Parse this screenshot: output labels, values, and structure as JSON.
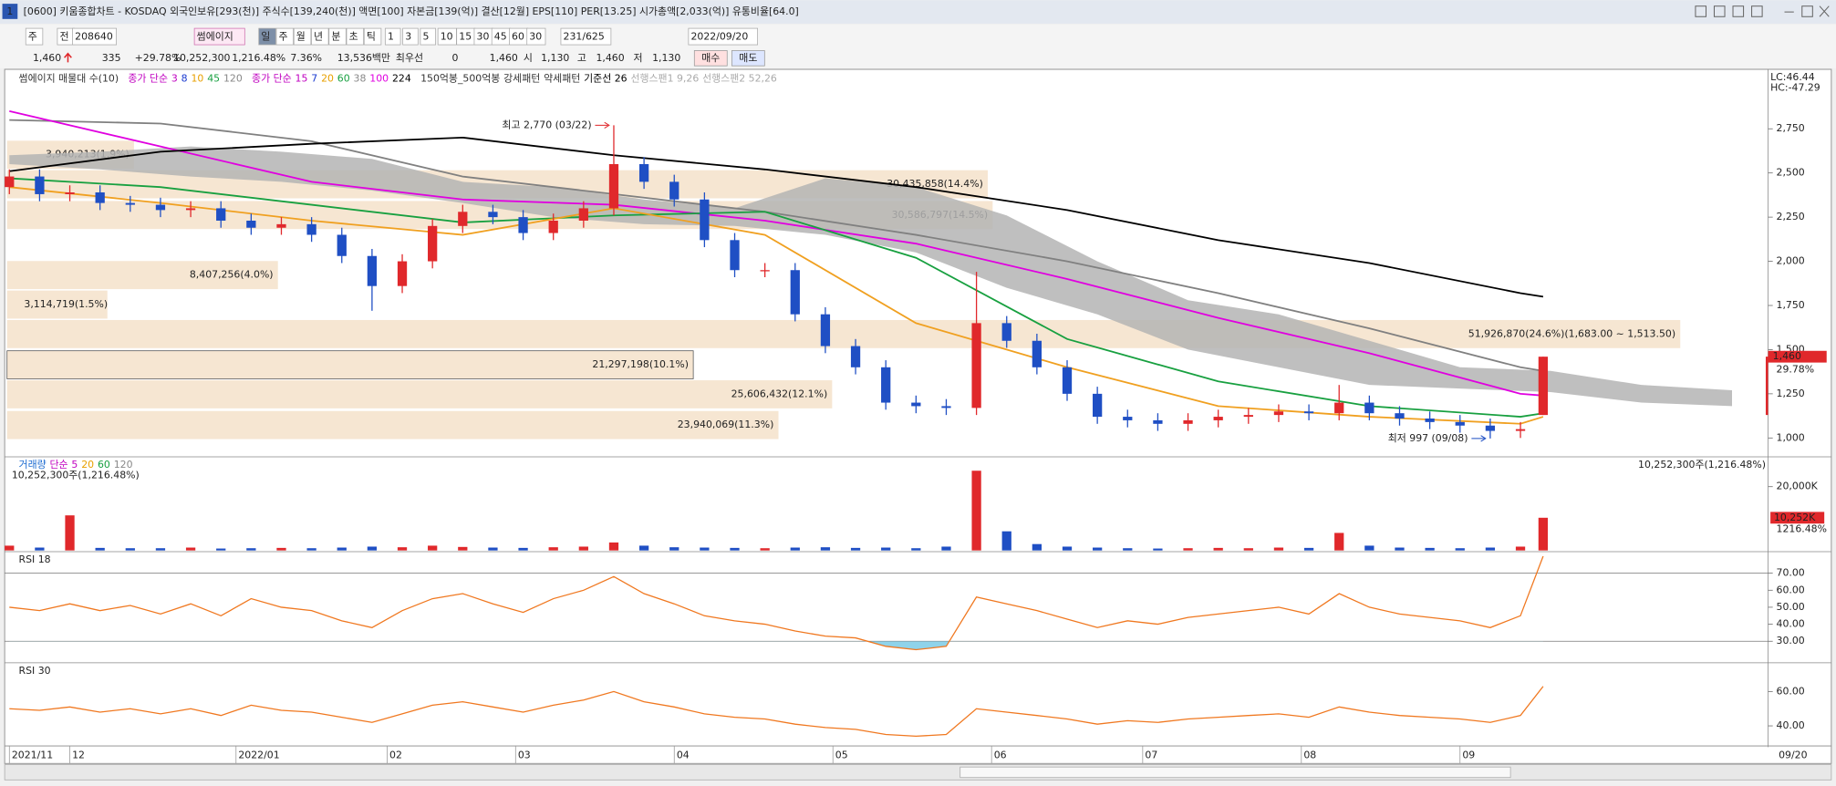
{
  "window": {
    "number": "1",
    "title": "[0600] 키움종합차트 - KOSDAQ 외국인보유[293(천)] 주식수[139,240(천)] 액면[100] 자본금[139(억)] 결산[12월] EPS[110] PER[13.25] 시가총액[2,033(억)] 유통비율[64.0]"
  },
  "toolbar": {
    "labels": [
      "주",
      "전"
    ],
    "code": "208640",
    "name": "썸에이지",
    "periods": [
      "일",
      "주",
      "월",
      "년",
      "분",
      "초",
      "틱"
    ],
    "intervals": [
      "1",
      "3",
      "5",
      "10",
      "15",
      "30",
      "45",
      "60"
    ],
    "count": "30",
    "range": "231/625",
    "date": "2022/09/20"
  },
  "quote": {
    "items": [
      "1,460",
      "335",
      "+29.78%",
      "10,252,300",
      "1,216.48%",
      "7.36%",
      "13,536백만",
      "최우선",
      "0",
      "1,460",
      "시",
      "1,130",
      "고",
      "1,460",
      "저",
      "1,130"
    ],
    "buttons": [
      "매수",
      "매도"
    ]
  },
  "chart_data": [
    {
      "type": "candlestick",
      "legend": [
        [
          {
            "text": "썸에이지 매물대 수(10)",
            "color": "#333333"
          }
        ],
        [
          {
            "text": "종가 단순",
            "color": "#c000c0"
          },
          {
            "text": "3",
            "color": "#c000c0"
          },
          {
            "text": "8",
            "color": "#1a3ad0"
          },
          {
            "text": "10",
            "color": "#e8a000"
          },
          {
            "text": "45",
            "color": "#18a040"
          },
          {
            "text": "120",
            "color": "#888888"
          }
        ],
        [
          {
            "text": "종가 단순",
            "color": "#c000c0"
          },
          {
            "text": "15",
            "color": "#c000c0"
          },
          {
            "text": "7",
            "color": "#1a3ad0"
          },
          {
            "text": "20",
            "color": "#e8a000"
          },
          {
            "text": "60",
            "color": "#18a040"
          },
          {
            "text": "38",
            "color": "#888888"
          },
          {
            "text": "100",
            "color": "#e000e0"
          },
          {
            "text": "224",
            "color": "#000000"
          }
        ],
        [
          {
            "text": "150억봉_500억봉",
            "color": "#333333"
          },
          {
            "text": "강세패턴",
            "color": "#333333"
          },
          {
            "text": "약세패턴",
            "color": "#333333"
          },
          {
            "text": "기준선 26",
            "color": "#000000"
          },
          {
            "text": "선행스팬1 9,26",
            "color": "#aaaaaa"
          },
          {
            "text": "선행스팬2 52,26",
            "color": "#aaaaaa"
          }
        ]
      ],
      "x": [
        0,
        4,
        8,
        12,
        16,
        20,
        24,
        28,
        32,
        36,
        40,
        44,
        48,
        52,
        56,
        60,
        64,
        68,
        72,
        76,
        80,
        84,
        88,
        92,
        96,
        100,
        104,
        108,
        112,
        116,
        120,
        124,
        128,
        132,
        136,
        140,
        144,
        148,
        152,
        156,
        160,
        164,
        168,
        172,
        176,
        180,
        184,
        188,
        192,
        196,
        200,
        203
      ],
      "open": [
        2420,
        2480,
        2380,
        2390,
        2330,
        2320,
        2290,
        2300,
        2230,
        2190,
        2210,
        2150,
        2030,
        1860,
        2000,
        2200,
        2280,
        2250,
        2160,
        2230,
        2300,
        2550,
        2450,
        2350,
        2120,
        1950,
        1950,
        1700,
        1520,
        1400,
        1200,
        1180,
        1170,
        1650,
        1550,
        1400,
        1250,
        1120,
        1100,
        1080,
        1100,
        1120,
        1130,
        1150,
        1140,
        1200,
        1140,
        1110,
        1090,
        1070,
        1040,
        1130
      ],
      "high": [
        2520,
        2520,
        2430,
        2430,
        2370,
        2360,
        2340,
        2340,
        2270,
        2250,
        2250,
        2190,
        2070,
        2040,
        2240,
        2320,
        2320,
        2290,
        2270,
        2340,
        2770,
        2590,
        2490,
        2390,
        2160,
        1990,
        1990,
        1740,
        1560,
        1440,
        1240,
        1220,
        1940,
        1690,
        1590,
        1440,
        1290,
        1160,
        1140,
        1140,
        1160,
        1170,
        1190,
        1190,
        1300,
        1240,
        1180,
        1150,
        1130,
        1110,
        1090,
        1460
      ],
      "low": [
        2380,
        2340,
        2340,
        2290,
        2280,
        2250,
        2250,
        2190,
        2150,
        2150,
        2110,
        1990,
        1720,
        1820,
        1960,
        2160,
        2210,
        2120,
        2120,
        2190,
        2260,
        2410,
        2310,
        2080,
        1910,
        1910,
        1660,
        1480,
        1360,
        1160,
        1140,
        1130,
        1130,
        1510,
        1360,
        1210,
        1080,
        1060,
        1040,
        1040,
        1060,
        1080,
        1090,
        1100,
        1100,
        1100,
        1070,
        1050,
        1030,
        997,
        1000,
        1130
      ],
      "close": [
        2480,
        2380,
        2390,
        2330,
        2320,
        2290,
        2300,
        2230,
        2190,
        2210,
        2150,
        2030,
        1860,
        2000,
        2200,
        2280,
        2250,
        2160,
        2230,
        2300,
        2550,
        2450,
        2350,
        2120,
        1950,
        1950,
        1700,
        1520,
        1400,
        1200,
        1180,
        1170,
        1650,
        1550,
        1400,
        1250,
        1120,
        1100,
        1080,
        1100,
        1120,
        1130,
        1150,
        1140,
        1200,
        1140,
        1110,
        1090,
        1070,
        1040,
        1050,
        1460
      ],
      "up_color": "#e0282b",
      "down_color": "#1f4fc4",
      "lines": [
        {
          "color": "#808080",
          "x": [
            0,
            20,
            40,
            60,
            80,
            100,
            120,
            140,
            160,
            180,
            200,
            203
          ],
          "values": [
            2800,
            2780,
            2680,
            2480,
            2380,
            2280,
            2150,
            2000,
            1820,
            1620,
            1400,
            1380
          ]
        },
        {
          "color": "#e000e0",
          "x": [
            0,
            20,
            40,
            60,
            80,
            100,
            120,
            140,
            160,
            180,
            200,
            203
          ],
          "values": [
            2850,
            2650,
            2450,
            2350,
            2320,
            2230,
            2100,
            1900,
            1680,
            1480,
            1250,
            1240
          ]
        },
        {
          "color": "#000000",
          "x": [
            0,
            20,
            40,
            60,
            80,
            100,
            120,
            140,
            160,
            180,
            200,
            203
          ],
          "values": [
            2510,
            2620,
            2665,
            2700,
            2600,
            2520,
            2420,
            2290,
            2120,
            1990,
            1820,
            1800
          ]
        },
        {
          "color": "#18a040",
          "x": [
            0,
            20,
            40,
            60,
            80,
            100,
            120,
            140,
            160,
            180,
            200,
            203
          ],
          "values": [
            2470,
            2420,
            2320,
            2220,
            2260,
            2280,
            2020,
            1560,
            1320,
            1180,
            1120,
            1140
          ]
        },
        {
          "color": "#f0a020",
          "x": [
            0,
            20,
            40,
            60,
            80,
            100,
            120,
            140,
            160,
            180,
            200,
            203
          ],
          "values": [
            2420,
            2330,
            2230,
            2150,
            2300,
            2150,
            1650,
            1400,
            1180,
            1120,
            1080,
            1120
          ]
        }
      ],
      "cloud": {
        "color": "#b4b4b4",
        "x": [
          0,
          12,
          24,
          36,
          48,
          60,
          72,
          84,
          96,
          108,
          120,
          132,
          144,
          156,
          168,
          180,
          192,
          204,
          216,
          228
        ],
        "upper": [
          2600,
          2620,
          2650,
          2620,
          2580,
          2450,
          2420,
          2350,
          2300,
          2470,
          2420,
          2260,
          2000,
          1780,
          1700,
          1550,
          1400,
          1380,
          1300,
          1270
        ],
        "lower": [
          2550,
          2520,
          2480,
          2450,
          2400,
          2330,
          2250,
          2210,
          2200,
          2150,
          2050,
          1850,
          1700,
          1500,
          1400,
          1300,
          1280,
          1260,
          1200,
          1180
        ]
      },
      "volume_profile": {
        "color": "#f6e6d2",
        "prices": [
          2603,
          2436,
          2262,
          1922,
          1755,
          1588,
          1414,
          1247,
          1073
        ],
        "values": [
          3940213,
          30435858,
          30586797,
          8407256,
          3114719,
          51926870,
          21297198,
          25606432,
          23940069
        ],
        "value_labels": [
          "3,940,213(1.9%)",
          "30,435,858(14.4%)",
          "30,586,797(14.5%)",
          "8,407,256(4.0%)",
          "3,114,719(1.5%)",
          "51,926,870(24.6%)(1,683.00 ~ 1,513.50)",
          "21,297,198(10.1%)",
          "25,606,432(12.1%)",
          "23,940,069(11.3%)"
        ]
      },
      "annotations": [
        {
          "text": "최고 2,770 (03/22)",
          "x": 80,
          "value": 2770,
          "color": "#e0282b"
        },
        {
          "text": "최저 997 (09/08)",
          "x": 196,
          "value": 997,
          "color": "#1f4fc4"
        }
      ],
      "corner_labels": [
        {
          "text": "LC:46.44",
          "color": "#e0282b"
        },
        {
          "text": "HC:-47.29",
          "color": "#1f4fc4"
        }
      ],
      "last_label": "1,460",
      "change_label": "29.78%",
      "xlim": [
        0,
        232
      ],
      "ylim": [
        900,
        3080
      ],
      "yticks": [
        {
          "value": 1000,
          "label": "1,000"
        },
        {
          "value": 1250,
          "label": "1,250"
        },
        {
          "value": 1500,
          "label": "1,500"
        },
        {
          "value": 1750,
          "label": "1,750"
        },
        {
          "value": 2000,
          "label": "2,000"
        },
        {
          "value": 2250,
          "label": "2,250"
        },
        {
          "value": 2500,
          "label": "2,500"
        },
        {
          "value": 2750,
          "label": "2,750"
        }
      ]
    },
    {
      "type": "bar",
      "legend": [
        [
          {
            "text": "거래량",
            "color": "#1a6ad0"
          },
          {
            "text": "단순",
            "color": "#c000c0"
          },
          {
            "text": "5",
            "color": "#c000c0"
          },
          {
            "text": "20",
            "color": "#e8a000"
          },
          {
            "text": "60",
            "color": "#18a040"
          },
          {
            "text": "120",
            "color": "#888888"
          }
        ]
      ],
      "volume_label": "10,252,300주(1,216.48%)",
      "x": [
        0,
        4,
        8,
        12,
        16,
        20,
        24,
        28,
        32,
        36,
        40,
        44,
        48,
        52,
        56,
        60,
        64,
        68,
        72,
        76,
        80,
        84,
        88,
        92,
        96,
        100,
        104,
        108,
        112,
        116,
        120,
        124,
        128,
        132,
        136,
        140,
        144,
        148,
        152,
        156,
        160,
        164,
        168,
        172,
        176,
        180,
        184,
        188,
        192,
        196,
        200,
        203
      ],
      "values": [
        1500000,
        900000,
        11000000,
        800000,
        700000,
        700000,
        900000,
        600000,
        700000,
        800000,
        700000,
        900000,
        1200000,
        1000000,
        1500000,
        1100000,
        900000,
        800000,
        1000000,
        1200000,
        2500000,
        1500000,
        1000000,
        900000,
        800000,
        700000,
        900000,
        1000000,
        800000,
        900000,
        700000,
        1200000,
        25000000,
        6000000,
        2000000,
        1200000,
        900000,
        700000,
        600000,
        700000,
        800000,
        700000,
        900000,
        800000,
        5500000,
        1500000,
        900000,
        800000,
        700000,
        900000,
        1200000,
        10252300
      ],
      "last_label": "10,252K",
      "change_label": "1216.48%",
      "xlim": [
        0,
        232
      ],
      "ylim": [
        0,
        29000000
      ],
      "yticks": [
        {
          "value": 20000000,
          "label": "20,000K"
        }
      ]
    },
    {
      "type": "line",
      "title": "RSI 18",
      "color": "#f07820",
      "fill_color": "#8fd3ea",
      "x": [
        0,
        4,
        8,
        12,
        16,
        20,
        24,
        28,
        32,
        36,
        40,
        44,
        48,
        52,
        56,
        60,
        64,
        68,
        72,
        76,
        80,
        84,
        88,
        92,
        96,
        100,
        104,
        108,
        112,
        116,
        120,
        124,
        128,
        132,
        136,
        140,
        144,
        148,
        152,
        156,
        160,
        164,
        168,
        172,
        176,
        180,
        184,
        188,
        192,
        196,
        200,
        203
      ],
      "values": [
        50,
        48,
        52,
        48,
        51,
        46,
        52,
        45,
        55,
        50,
        48,
        42,
        38,
        48,
        55,
        58,
        52,
        47,
        55,
        60,
        68,
        58,
        52,
        45,
        42,
        40,
        36,
        33,
        32,
        27,
        25,
        27,
        56,
        52,
        48,
        43,
        38,
        42,
        40,
        44,
        46,
        48,
        50,
        46,
        58,
        50,
        46,
        44,
        42,
        38,
        45,
        80
      ],
      "levels": [
        30,
        70
      ],
      "xlim": [
        0,
        232
      ],
      "ylim": [
        18,
        82
      ],
      "yticks": [
        {
          "value": 30,
          "label": "30.00"
        },
        {
          "value": 40,
          "label": "40.00"
        },
        {
          "value": 50,
          "label": "50.00"
        },
        {
          "value": 60,
          "label": "60.00"
        },
        {
          "value": 70,
          "label": "70.00"
        }
      ]
    },
    {
      "type": "line",
      "title": "RSI 30",
      "color": "#f07820",
      "x": [
        0,
        4,
        8,
        12,
        16,
        20,
        24,
        28,
        32,
        36,
        40,
        44,
        48,
        52,
        56,
        60,
        64,
        68,
        72,
        76,
        80,
        84,
        88,
        92,
        96,
        100,
        104,
        108,
        112,
        116,
        120,
        124,
        128,
        132,
        136,
        140,
        144,
        148,
        152,
        156,
        160,
        164,
        168,
        172,
        176,
        180,
        184,
        188,
        192,
        196,
        200,
        203
      ],
      "values": [
        50,
        49,
        51,
        48,
        50,
        47,
        50,
        46,
        52,
        49,
        48,
        45,
        42,
        47,
        52,
        54,
        51,
        48,
        52,
        55,
        60,
        54,
        51,
        47,
        45,
        44,
        41,
        39,
        38,
        35,
        34,
        35,
        50,
        48,
        46,
        44,
        41,
        43,
        42,
        44,
        45,
        46,
        47,
        45,
        51,
        48,
        46,
        45,
        44,
        42,
        46,
        63
      ],
      "xlim": [
        0,
        232
      ],
      "ylim": [
        29,
        76
      ],
      "yticks": [
        {
          "value": 40,
          "label": "40.00"
        },
        {
          "value": 60,
          "label": "60.00"
        }
      ],
      "xticks": [
        {
          "value": 0,
          "label": "2021/11"
        },
        {
          "value": 8,
          "label": "12"
        },
        {
          "value": 30,
          "label": "2022/01"
        },
        {
          "value": 50,
          "label": "02"
        },
        {
          "value": 67,
          "label": "03"
        },
        {
          "value": 88,
          "label": "04"
        },
        {
          "value": 109,
          "label": "05"
        },
        {
          "value": 130,
          "label": "06"
        },
        {
          "value": 150,
          "label": "07"
        },
        {
          "value": 171,
          "label": "08"
        },
        {
          "value": 192,
          "label": "09"
        }
      ],
      "date_label": "09/20"
    }
  ]
}
